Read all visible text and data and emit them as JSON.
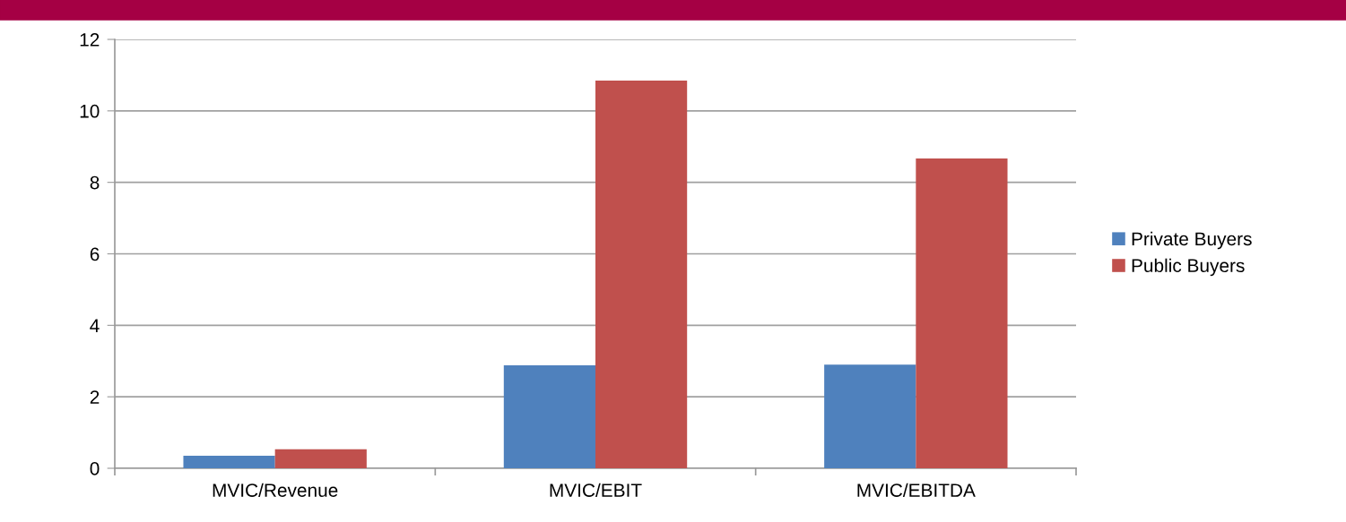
{
  "chart_data": {
    "type": "bar",
    "categories": [
      "MVIC/Revenue",
      "MVIC/EBIT",
      "MVIC/EBITDA"
    ],
    "series": [
      {
        "name": "Private Buyers",
        "color": "#4f81bd",
        "values": [
          0.35,
          2.88,
          2.9
        ]
      },
      {
        "name": "Public Buyers",
        "color": "#c0504d",
        "values": [
          0.53,
          10.85,
          8.67
        ]
      }
    ],
    "ylim": [
      0,
      12
    ],
    "yticks": [
      0,
      2,
      4,
      6,
      8,
      10,
      12
    ],
    "grid": "y",
    "legend": "right"
  }
}
